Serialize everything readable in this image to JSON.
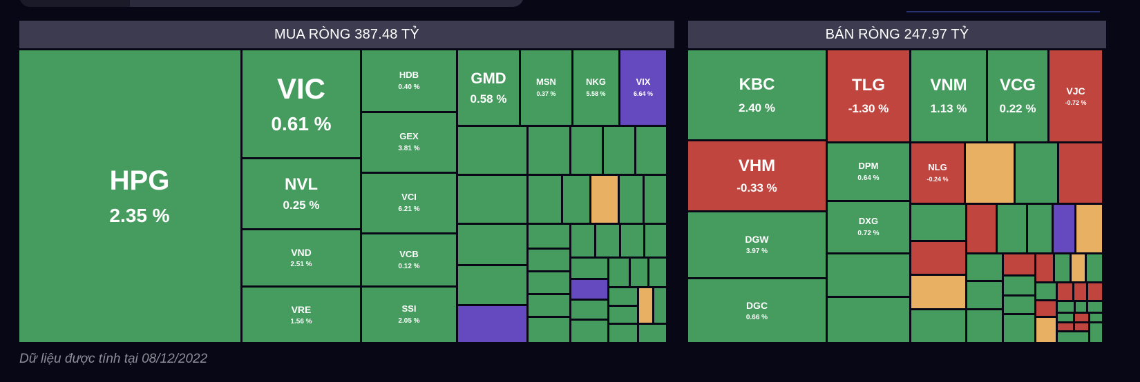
{
  "colors": {
    "background": "#070716",
    "header": "#3d3b4f",
    "green": "#459c5e",
    "red": "#c0453e",
    "yellow": "#e7b062",
    "purple": "#6549bf"
  },
  "buy_panel": {
    "title": "MUA RÒNG 387.48 TỶ",
    "tiles": [
      {
        "symbol": "HPG",
        "change": "2.35 %"
      },
      {
        "symbol": "VIC",
        "change": "0.61 %"
      },
      {
        "symbol": "NVL",
        "change": "0.25 %"
      },
      {
        "symbol": "VND",
        "change": "2.51 %"
      },
      {
        "symbol": "VRE",
        "change": "1.56 %"
      },
      {
        "symbol": "HDB",
        "change": "0.40 %"
      },
      {
        "symbol": "GEX",
        "change": "3.81 %"
      },
      {
        "symbol": "VCI",
        "change": "6.21 %"
      },
      {
        "symbol": "VCB",
        "change": "0.12 %"
      },
      {
        "symbol": "SSI",
        "change": "2.05 %"
      },
      {
        "symbol": "GMD",
        "change": "0.58 %"
      },
      {
        "symbol": "MSN",
        "change": "0.37 %"
      },
      {
        "symbol": "NKG",
        "change": "5.58 %"
      },
      {
        "symbol": "VIX",
        "change": "6.64 %"
      }
    ]
  },
  "sell_panel": {
    "title": "BÁN RÒNG 247.97 TỶ",
    "tiles": [
      {
        "symbol": "KBC",
        "change": "2.40 %"
      },
      {
        "symbol": "VHM",
        "change": "-0.33 %"
      },
      {
        "symbol": "DGW",
        "change": "3.97 %"
      },
      {
        "symbol": "DGC",
        "change": "0.66 %"
      },
      {
        "symbol": "TLG",
        "change": "-1.30 %"
      },
      {
        "symbol": "DPM",
        "change": "0.64 %"
      },
      {
        "symbol": "DXG",
        "change": "0.72 %"
      },
      {
        "symbol": "VNM",
        "change": "1.13 %"
      },
      {
        "symbol": "VCG",
        "change": "0.22 %"
      },
      {
        "symbol": "VJC",
        "change": "-0.72 %"
      },
      {
        "symbol": "NLG",
        "change": "-0.24 %"
      }
    ]
  },
  "footer": {
    "note": "Dữ liệu được tính tại 08/12/2022"
  }
}
